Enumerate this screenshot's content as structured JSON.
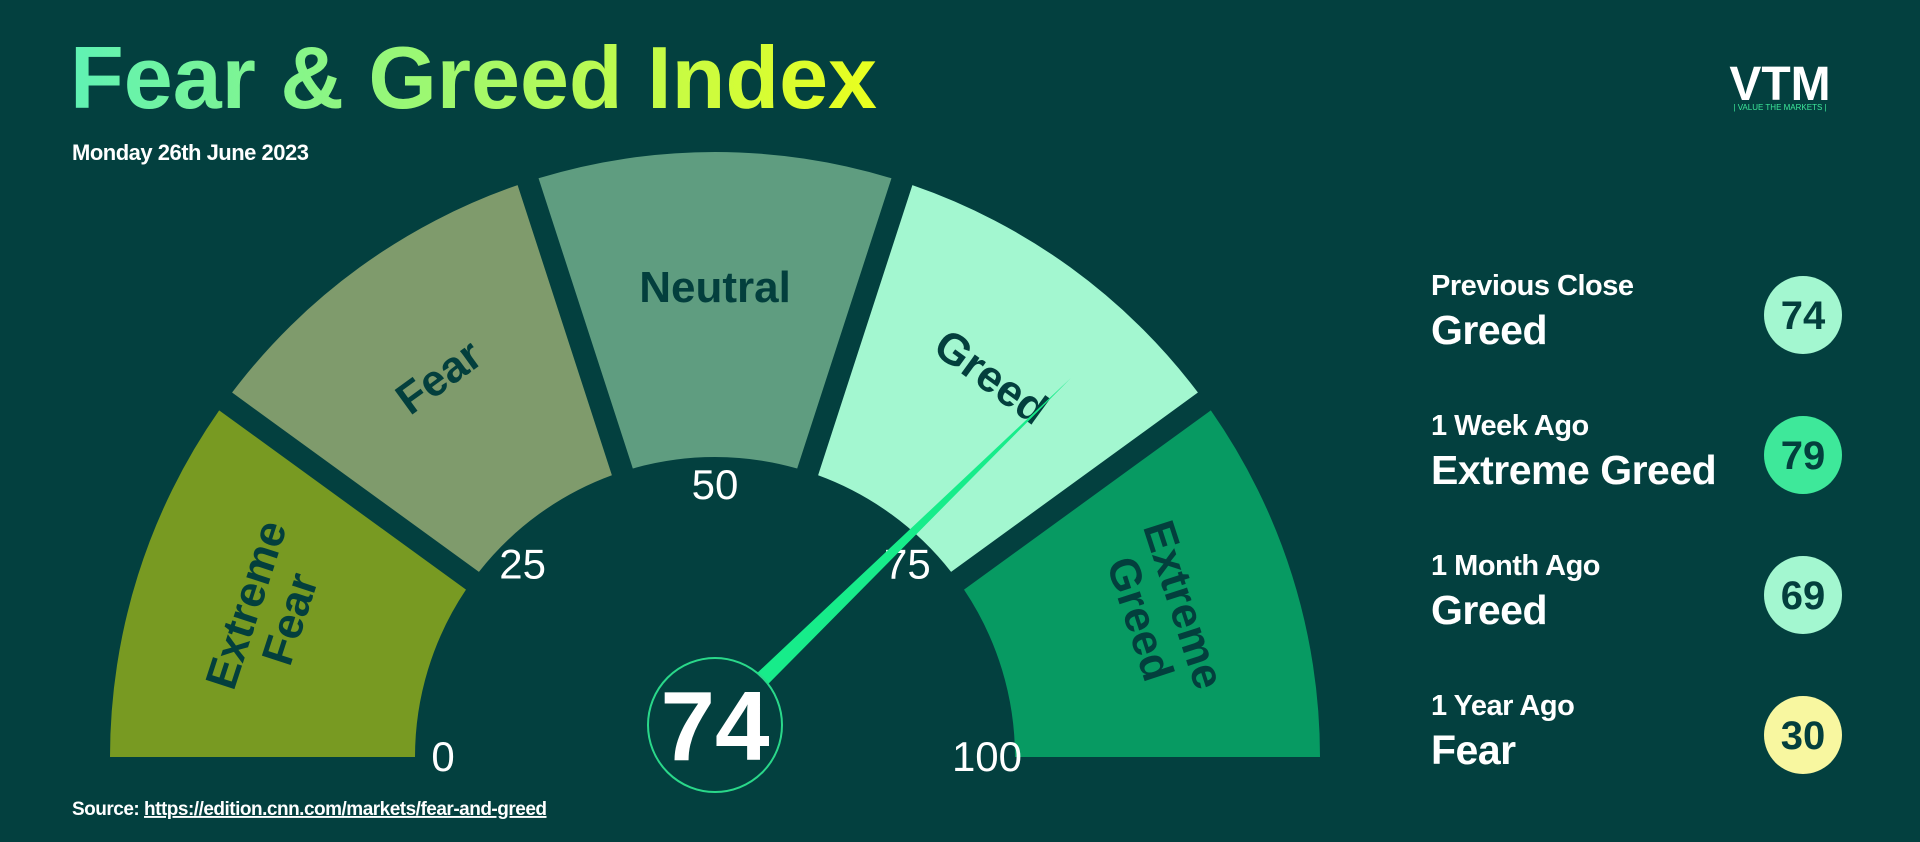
{
  "header": {
    "title": "Fear & Greed Index",
    "date": "Monday 26th June 2023",
    "logo": "VTM",
    "logo_tagline": "| VALUE THE MARKETS |"
  },
  "chart_data": {
    "type": "gauge",
    "value": 74,
    "min": 0,
    "max": 100,
    "ticks": [
      0,
      25,
      50,
      75,
      100
    ],
    "needle_color": "#17ec8a",
    "segments": [
      {
        "label": [
          "Extreme",
          "Fear"
        ],
        "color": "#789a22"
      },
      {
        "label": [
          "Fear"
        ],
        "color": "#7f9b6c"
      },
      {
        "label": [
          "Neutral"
        ],
        "color": "#5f9d80"
      },
      {
        "label": [
          "Greed"
        ],
        "color": "#a3f7d0"
      },
      {
        "label": [
          "Extreme",
          "Greed"
        ],
        "color": "#079a62"
      }
    ]
  },
  "history": [
    {
      "period": "Previous Close",
      "rating": "Greed",
      "value": 74,
      "color": "#a3f7d0"
    },
    {
      "period": "1 Week Ago",
      "rating": "Extreme Greed",
      "value": 79,
      "color": "#3ee89a"
    },
    {
      "period": "1 Month Ago",
      "rating": "Greed",
      "value": 69,
      "color": "#a3f7d0"
    },
    {
      "period": "1 Year Ago",
      "rating": "Fear",
      "value": 30,
      "color": "#f8f7a0"
    }
  ],
  "source": {
    "label": "Source:",
    "url": "https://edition.cnn.com/markets/fear-and-greed"
  }
}
